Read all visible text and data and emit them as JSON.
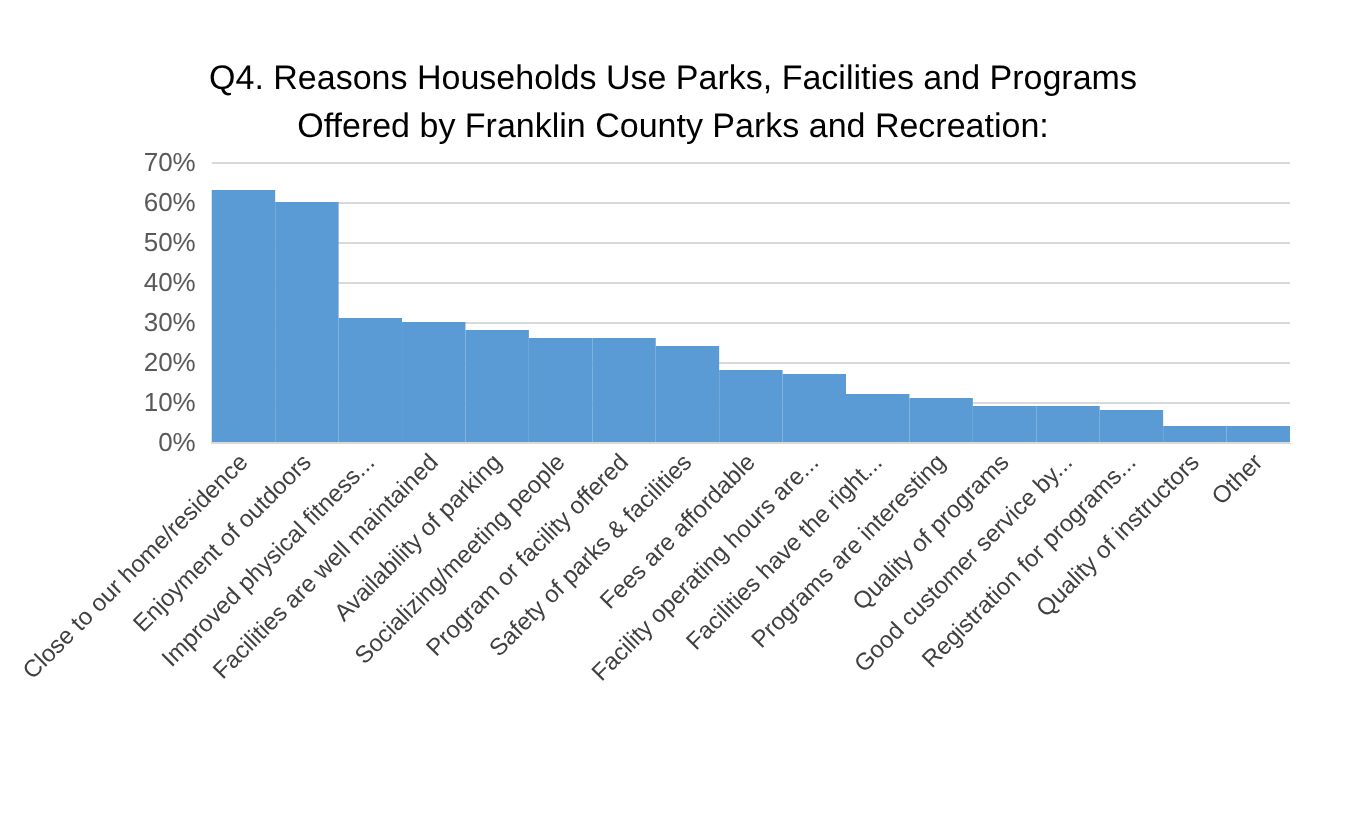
{
  "chart_data": {
    "type": "bar",
    "title": "Q4. Reasons Households Use Parks, Facilities and Programs\nOffered by Franklin County Parks and Recreation:",
    "categories": [
      "Close to our home/residence",
      "Enjoyment of outdoors",
      "Improved physical fitness...",
      "Facilities are well maintained",
      "Availability of parking",
      "Socializing/meeting people",
      "Program or facility offered",
      "Safety of parks & facilities",
      "Fees are affordable",
      "Facility operating hours are...",
      "Facilities have the right...",
      "Programs are interesting",
      "Quality of programs",
      "Good customer service by...",
      "Registration for programs...",
      "Quality of instructors",
      "Other"
    ],
    "values": [
      63,
      60,
      31,
      30,
      28,
      26,
      26,
      24,
      18,
      17,
      12,
      11,
      9,
      9,
      8,
      4,
      4
    ],
    "color": "#5b9bd5",
    "ylim": [
      0,
      70
    ],
    "yticks": [
      {
        "value": 0,
        "label": "0%"
      },
      {
        "value": 10,
        "label": "10%"
      },
      {
        "value": 20,
        "label": "20%"
      },
      {
        "value": 30,
        "label": "30%"
      },
      {
        "value": 40,
        "label": "40%"
      },
      {
        "value": 50,
        "label": "50%"
      },
      {
        "value": 60,
        "label": "60%"
      },
      {
        "value": 70,
        "label": "70%"
      }
    ],
    "grid": "y"
  }
}
